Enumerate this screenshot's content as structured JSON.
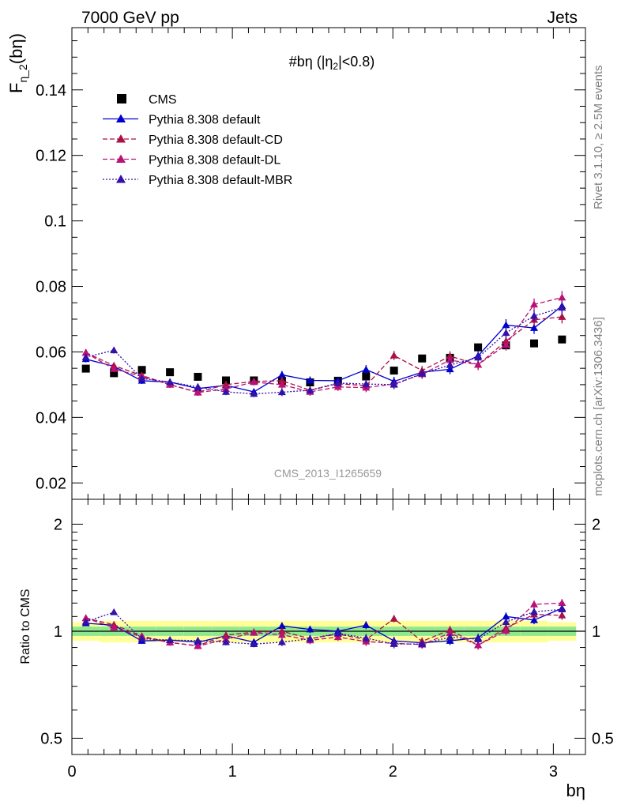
{
  "header": {
    "left": "7000 GeV pp",
    "right": "Jets"
  },
  "side": {
    "rivet": "Rivet 3.1.10, ≥ 2.5M events",
    "mcplots": "mcplots.cern.ch [arXiv:1306.3436]"
  },
  "chart_data": [
    {
      "type": "scatter",
      "title": "#bη (|η_2|<0.8)",
      "ylabel": "F_η_2(bη)",
      "xlabel": "bη",
      "xlim": [
        0,
        3.2
      ],
      "ylim": [
        0.015,
        0.159
      ],
      "yticks": [
        0.02,
        0.04,
        0.06,
        0.08,
        0.1,
        0.12,
        0.14
      ],
      "ytick_labels": [
        "0.02",
        "0.04",
        "0.06",
        "0.08",
        "0.1",
        "0.12",
        "0.14"
      ],
      "watermark": "CMS_2013_I1265659",
      "x": [
        0.087,
        0.262,
        0.436,
        0.611,
        0.785,
        0.96,
        1.134,
        1.309,
        1.484,
        1.658,
        1.833,
        2.007,
        2.182,
        2.356,
        2.531,
        2.705,
        2.88,
        3.054
      ],
      "series": [
        {
          "name": "CMS",
          "color": "#000000",
          "marker": "square",
          "line": "none",
          "values": [
            0.0549,
            0.0535,
            0.0545,
            0.0538,
            0.0524,
            0.0513,
            0.0513,
            0.0512,
            0.0507,
            0.0512,
            0.0525,
            0.0543,
            0.058,
            0.0582,
            0.0614,
            0.062,
            0.0626,
            0.0638
          ]
        },
        {
          "name": "Pythia 8.308 default",
          "color": "#0000cc",
          "marker": "triangle",
          "line": "solid",
          "values": [
            0.0578,
            0.0556,
            0.0512,
            0.0508,
            0.0488,
            0.0498,
            0.0478,
            0.053,
            0.0513,
            0.0512,
            0.0546,
            0.051,
            0.0538,
            0.0547,
            0.0588,
            0.0682,
            0.0673,
            0.074
          ],
          "errors": [
            0.001,
            0.001,
            0.001,
            0.001,
            0.001,
            0.001,
            0.001,
            0.0012,
            0.0012,
            0.0012,
            0.0014,
            0.0014,
            0.0014,
            0.0015,
            0.0016,
            0.0018,
            0.0018,
            0.002
          ]
        },
        {
          "name": "Pythia 8.308 default-CD",
          "color": "#aa1144",
          "marker": "triangle",
          "line": "dashed",
          "values": [
            0.0598,
            0.0558,
            0.0528,
            0.05,
            0.0477,
            0.05,
            0.051,
            0.0512,
            0.0483,
            0.0503,
            0.0497,
            0.0589,
            0.0543,
            0.0587,
            0.0561,
            0.0633,
            0.0698,
            0.0707
          ],
          "errors": [
            0.001,
            0.001,
            0.001,
            0.001,
            0.001,
            0.001,
            0.001,
            0.0012,
            0.0012,
            0.0012,
            0.0014,
            0.0014,
            0.0014,
            0.0015,
            0.0016,
            0.0018,
            0.0018,
            0.002
          ]
        },
        {
          "name": "Pythia 8.308 default-DL",
          "color": "#bb1177",
          "marker": "triangle",
          "line": "dashed",
          "values": [
            0.0597,
            0.0548,
            0.0525,
            0.05,
            0.0476,
            0.0487,
            0.0508,
            0.05,
            0.0478,
            0.0493,
            0.0491,
            0.0502,
            0.0532,
            0.0575,
            0.0561,
            0.0622,
            0.0745,
            0.0766
          ],
          "errors": [
            0.001,
            0.001,
            0.001,
            0.001,
            0.001,
            0.001,
            0.001,
            0.0012,
            0.0012,
            0.0012,
            0.0014,
            0.0014,
            0.0014,
            0.0015,
            0.0016,
            0.0018,
            0.0018,
            0.002
          ]
        },
        {
          "name": "Pythia 8.308 default-MBR",
          "color": "#3311aa",
          "marker": "triangle",
          "line": "dotted",
          "values": [
            0.0584,
            0.0605,
            0.0519,
            0.0508,
            0.0493,
            0.0478,
            0.0472,
            0.0477,
            0.0483,
            0.0505,
            0.0502,
            0.05,
            0.0534,
            0.056,
            0.0583,
            0.0658,
            0.071,
            0.0735
          ],
          "errors": [
            0.001,
            0.001,
            0.001,
            0.001,
            0.001,
            0.001,
            0.001,
            0.0012,
            0.0012,
            0.0012,
            0.0014,
            0.0014,
            0.0014,
            0.0015,
            0.0016,
            0.0018,
            0.0018,
            0.002
          ]
        }
      ]
    },
    {
      "type": "scatter",
      "ylabel": "Ratio to CMS",
      "xlabel": "bη",
      "xlim": [
        0,
        3.2
      ],
      "ylim": [
        0.45,
        2.35
      ],
      "log_y": true,
      "yticks": [
        0.5,
        1,
        2
      ],
      "ytick_labels": [
        "0.5",
        "1",
        "2"
      ],
      "xticks": [
        0,
        1,
        2,
        3
      ],
      "xtick_labels": [
        "0",
        "1",
        "2",
        "3"
      ],
      "bands": {
        "inner_color": "#8fe88f",
        "outer_color": "#ffff99",
        "inner": [
          0.03,
          0.03,
          0.03,
          0.03,
          0.03,
          0.03,
          0.03,
          0.03,
          0.03,
          0.03,
          0.03,
          0.03,
          0.03,
          0.03,
          0.03,
          0.03,
          0.03,
          0.03
        ],
        "outer": [
          0.06,
          0.07,
          0.07,
          0.07,
          0.07,
          0.07,
          0.07,
          0.07,
          0.07,
          0.07,
          0.07,
          0.07,
          0.07,
          0.07,
          0.07,
          0.07,
          0.07,
          0.06
        ]
      }
    }
  ]
}
